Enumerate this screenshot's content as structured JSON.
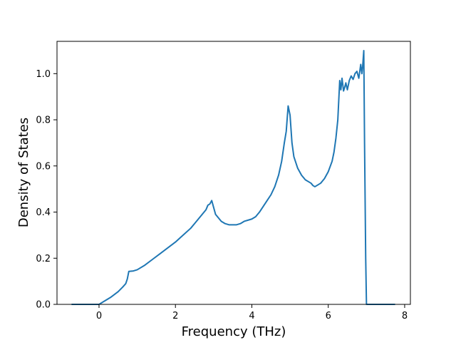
{
  "chart_data": {
    "type": "line",
    "title": "",
    "xlabel": "Frequency (THz)",
    "ylabel": "Density of States",
    "xlim": [
      -1.1,
      8.15
    ],
    "ylim": [
      0.0,
      1.14
    ],
    "x_ticks": [
      0,
      2,
      4,
      6,
      8
    ],
    "x_tick_labels": [
      "0",
      "2",
      "4",
      "6",
      "8"
    ],
    "y_ticks": [
      0.0,
      0.2,
      0.4,
      0.6,
      0.8,
      1.0
    ],
    "y_tick_labels": [
      "0.0",
      "0.2",
      "0.4",
      "0.6",
      "0.8",
      "1.0"
    ],
    "grid": false,
    "legend": false,
    "line_color": "#1f77b4",
    "series": [
      {
        "x": [
          -0.72,
          0.0,
          0.1,
          0.3,
          0.5,
          0.62,
          0.7,
          0.74,
          0.78,
          0.9,
          1.0,
          1.2,
          1.4,
          1.6,
          1.8,
          2.0,
          2.2,
          2.4,
          2.5,
          2.6,
          2.7,
          2.8,
          2.85,
          2.9,
          2.95,
          3.0,
          3.05,
          3.1,
          3.2,
          3.3,
          3.4,
          3.5,
          3.6,
          3.7,
          3.8,
          3.9,
          4.0,
          4.1,
          4.2,
          4.3,
          4.4,
          4.5,
          4.6,
          4.7,
          4.78,
          4.85,
          4.9,
          4.95,
          5.0,
          5.05,
          5.1,
          5.2,
          5.3,
          5.4,
          5.5,
          5.55,
          5.6,
          5.65,
          5.7,
          5.8,
          5.9,
          6.0,
          6.1,
          6.15,
          6.2,
          6.25,
          6.3,
          6.33,
          6.36,
          6.4,
          6.43,
          6.46,
          6.5,
          6.55,
          6.6,
          6.65,
          6.7,
          6.75,
          6.8,
          6.85,
          6.88,
          6.9,
          6.93,
          6.95,
          6.98,
          7.0,
          7.02,
          7.05,
          7.08,
          7.2,
          7.5,
          7.75
        ],
        "y": [
          0.0,
          0.0,
          0.01,
          0.03,
          0.055,
          0.075,
          0.09,
          0.11,
          0.143,
          0.145,
          0.15,
          0.17,
          0.195,
          0.22,
          0.245,
          0.27,
          0.3,
          0.33,
          0.35,
          0.37,
          0.39,
          0.41,
          0.43,
          0.435,
          0.45,
          0.42,
          0.39,
          0.38,
          0.36,
          0.35,
          0.345,
          0.345,
          0.345,
          0.35,
          0.36,
          0.365,
          0.37,
          0.38,
          0.4,
          0.425,
          0.45,
          0.475,
          0.51,
          0.56,
          0.62,
          0.7,
          0.75,
          0.86,
          0.82,
          0.7,
          0.64,
          0.59,
          0.56,
          0.54,
          0.53,
          0.525,
          0.515,
          0.51,
          0.515,
          0.525,
          0.545,
          0.575,
          0.62,
          0.66,
          0.72,
          0.8,
          0.97,
          0.93,
          0.98,
          0.925,
          0.94,
          0.96,
          0.93,
          0.97,
          0.99,
          0.975,
          1.0,
          1.01,
          0.98,
          1.04,
          1.0,
          1.03,
          1.1,
          0.7,
          0.2,
          0.0,
          0.0,
          0.0,
          0.0,
          0.0,
          0.0,
          0.0
        ]
      }
    ]
  }
}
